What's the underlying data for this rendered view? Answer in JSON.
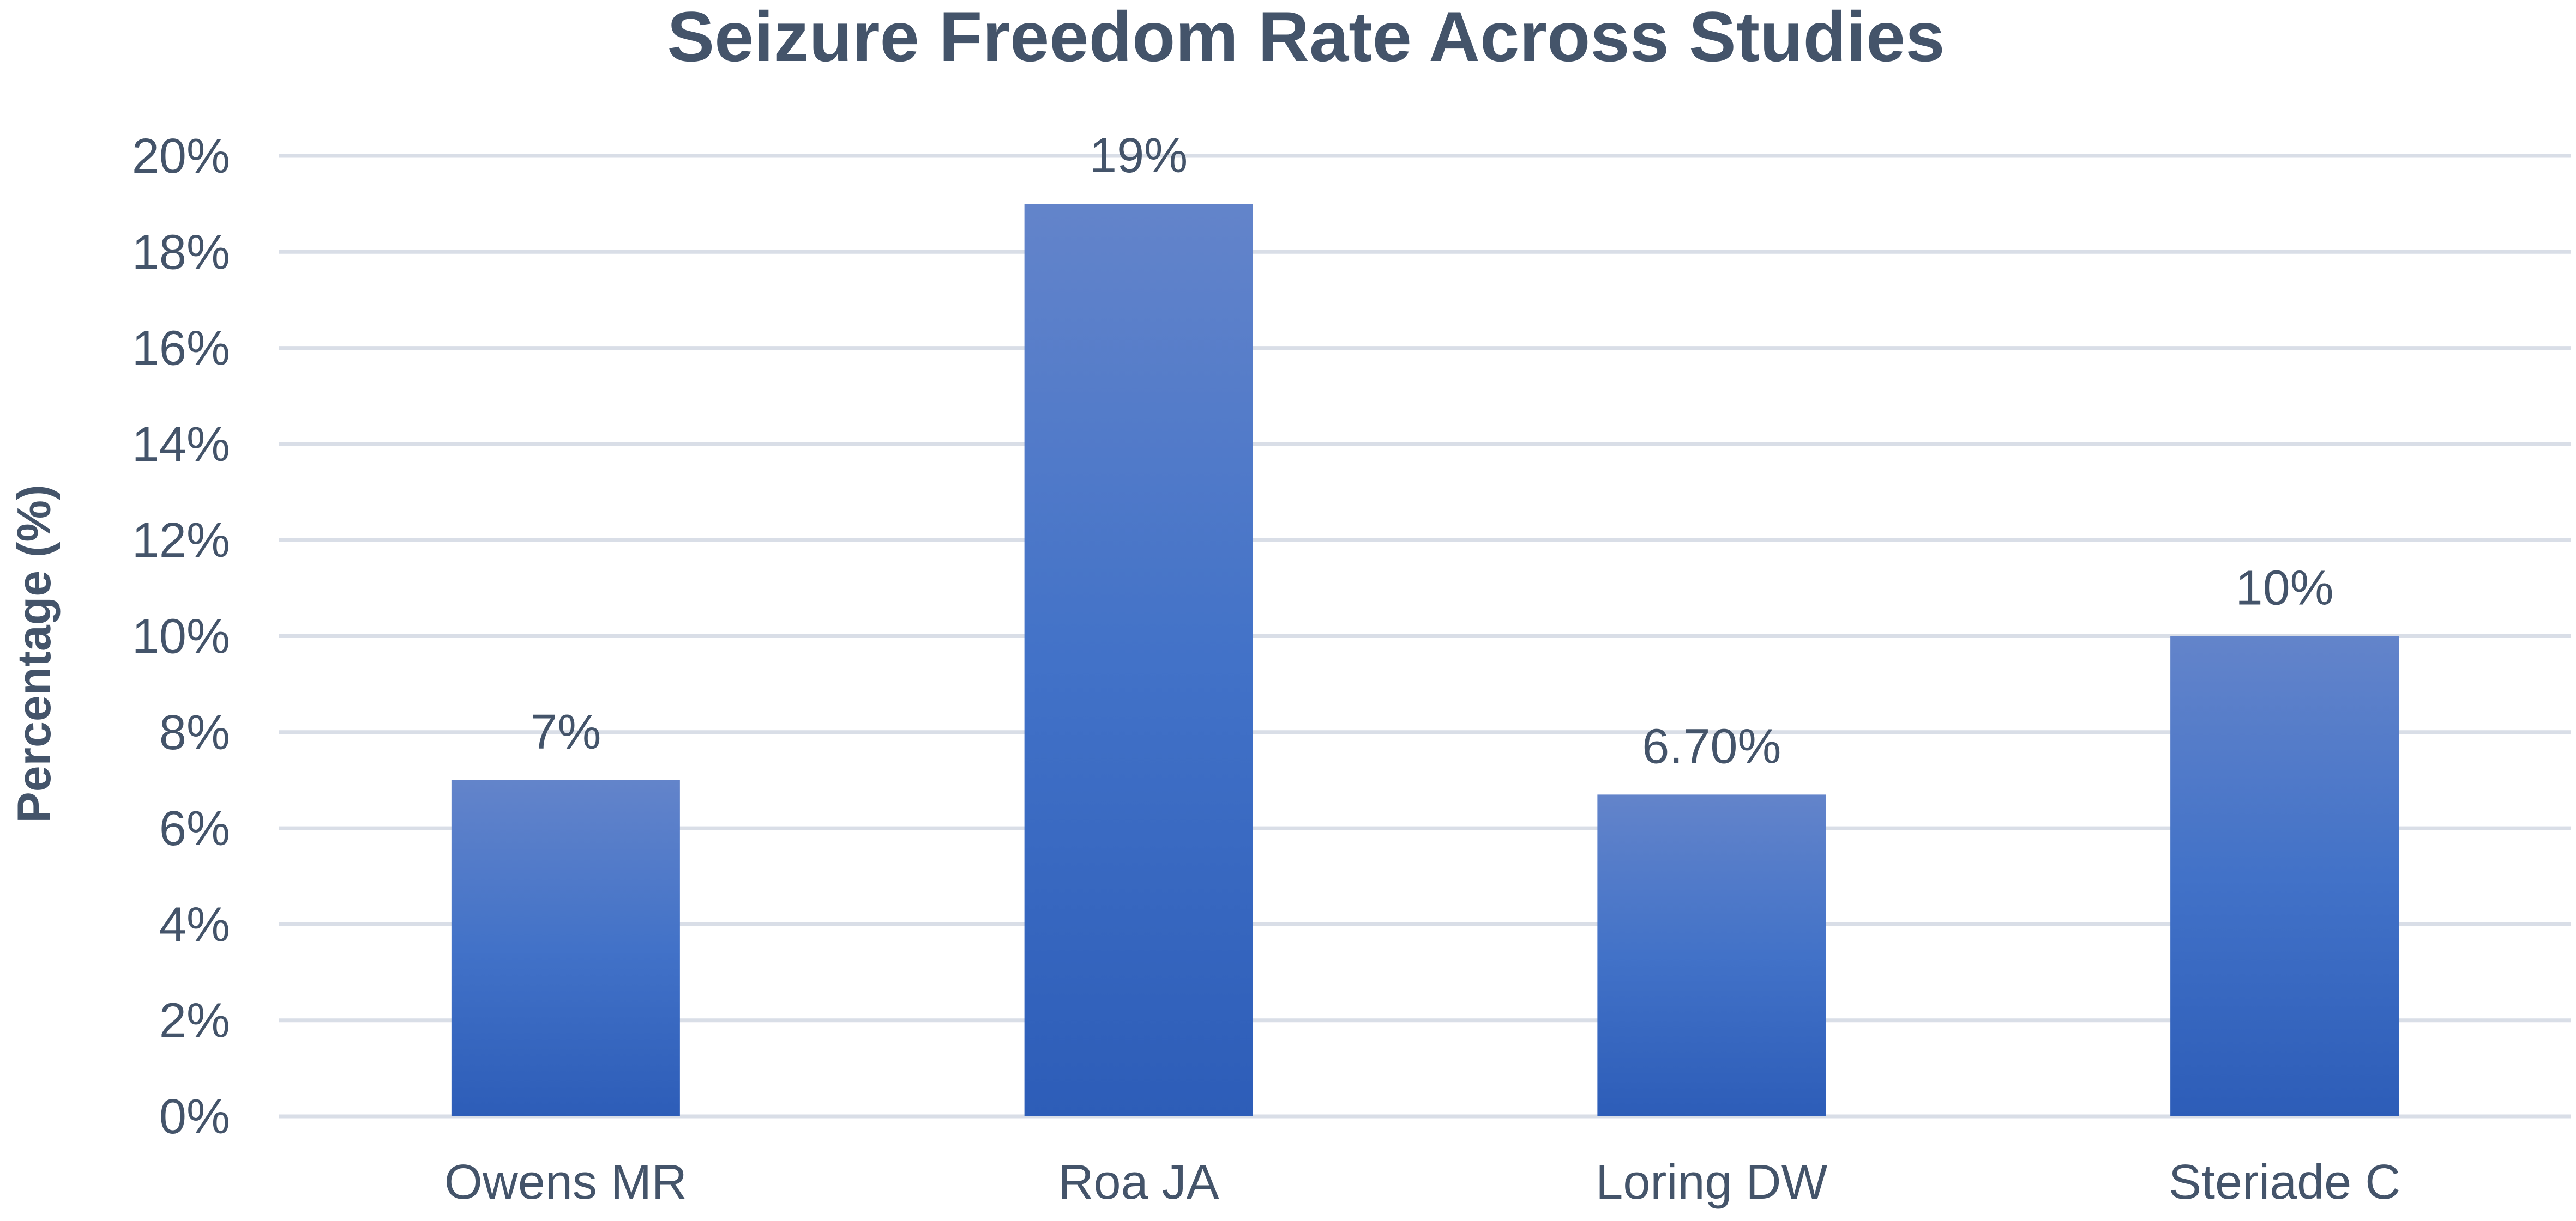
{
  "chart_data": {
    "type": "bar",
    "title": "Seizure Freedom Rate Across Studies",
    "xlabel": "",
    "ylabel": "Percentage (%)",
    "categories": [
      "Owens MR",
      "Roa JA",
      "Loring DW",
      "Steriade C"
    ],
    "values": [
      7,
      19,
      6.7,
      10
    ],
    "data_labels": [
      "7%",
      "19%",
      "6.70%",
      "10%"
    ],
    "ylim": [
      0,
      20
    ],
    "yticks": [
      0,
      2,
      4,
      6,
      8,
      10,
      12,
      14,
      16,
      18,
      20
    ],
    "ytick_labels": [
      "0%",
      "2%",
      "4%",
      "6%",
      "8%",
      "10%",
      "12%",
      "14%",
      "16%",
      "18%",
      "20%"
    ],
    "grid": true,
    "legend": "none",
    "colors": {
      "bar_top": "#6384CA",
      "bar_bottom": "#2D5DB8",
      "text": "#44546A",
      "grid": "#D9DEE7"
    }
  }
}
